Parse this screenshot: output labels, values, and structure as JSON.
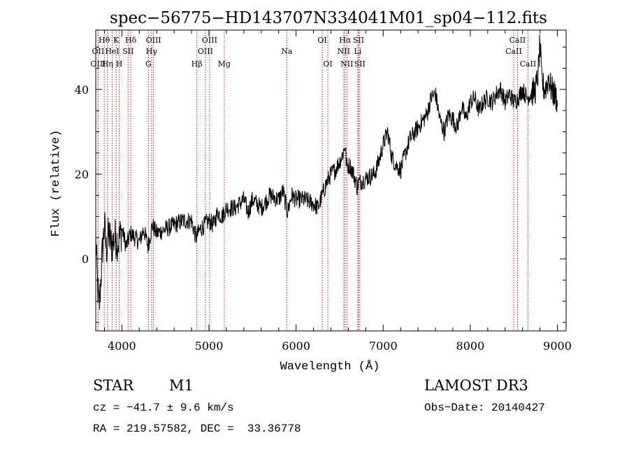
{
  "chart_data": {
    "type": "line",
    "title": "spec−56775−HD143707N334041M01_sp04−112.fits",
    "xlabel": "Wavelength (Å)",
    "ylabel": "Flux (relative)",
    "xlim": [
      3700,
      9100
    ],
    "ylim": [
      -17,
      54
    ],
    "x_ticks": [
      4000,
      5000,
      6000,
      7000,
      8000,
      9000
    ],
    "y_ticks": [
      0,
      20,
      40
    ],
    "series": [
      {
        "name": "flux",
        "x": [
          3700,
          3720,
          3740,
          3760,
          3780,
          3800,
          3820,
          3850,
          3880,
          3920,
          3960,
          4000,
          4050,
          4100,
          4150,
          4200,
          4250,
          4300,
          4350,
          4400,
          4500,
          4600,
          4700,
          4800,
          4850,
          4900,
          5000,
          5050,
          5100,
          5150,
          5200,
          5300,
          5400,
          5450,
          5500,
          5600,
          5700,
          5800,
          5850,
          5900,
          5950,
          6000,
          6100,
          6200,
          6250,
          6300,
          6350,
          6400,
          6450,
          6500,
          6540,
          6563,
          6580,
          6620,
          6660,
          6700,
          6720,
          6800,
          6900,
          6950,
          7000,
          7050,
          7100,
          7150,
          7200,
          7300,
          7400,
          7500,
          7550,
          7600,
          7650,
          7700,
          7750,
          7800,
          7850,
          7900,
          7950,
          8000,
          8050,
          8100,
          8150,
          8200,
          8250,
          8300,
          8350,
          8400,
          8450,
          8500,
          8550,
          8600,
          8650,
          8700,
          8750,
          8780,
          8800,
          8820,
          8850,
          8880,
          8900,
          8930,
          8960,
          8990,
          9000
        ],
        "y": [
          5,
          -6,
          -12,
          -4,
          3,
          8,
          2,
          6,
          3,
          5,
          4,
          7,
          3,
          6,
          5,
          4,
          7,
          3,
          8,
          6,
          7,
          8,
          9,
          9,
          5,
          7,
          9,
          8,
          11,
          10,
          12,
          12,
          14,
          11,
          14,
          12,
          15,
          14,
          16,
          11,
          15,
          14,
          14,
          13,
          12,
          15,
          18,
          20,
          21,
          23,
          25,
          27,
          22,
          22,
          20,
          17,
          18,
          19,
          20,
          23,
          27,
          30,
          24,
          22,
          21,
          28,
          31,
          34,
          38,
          39,
          33,
          30,
          34,
          33,
          31,
          36,
          33,
          37,
          38,
          35,
          37,
          38,
          37,
          39,
          40,
          37,
          39,
          37,
          38,
          40,
          38,
          39,
          40,
          44,
          51,
          42,
          40,
          41,
          43,
          40,
          39,
          38,
          36
        ]
      }
    ],
    "line_markers": [
      {
        "name": "Hθ",
        "x": 3798,
        "row": 0
      },
      {
        "name": "OII",
        "x": 3727,
        "row": 1
      },
      {
        "name": "OIII",
        "x": 3727,
        "row": 2
      },
      {
        "name": "K",
        "x": 3934,
        "row": 0
      },
      {
        "name": "HeI",
        "x": 3889,
        "row": 1
      },
      {
        "name": "Hη",
        "x": 3835,
        "row": 2
      },
      {
        "name": "SII",
        "x": 4072,
        "row": 1
      },
      {
        "name": "H",
        "x": 3969,
        "row": 2
      },
      {
        "name": "Hδ",
        "x": 4102,
        "row": 0
      },
      {
        "name": "OIII",
        "x": 4363,
        "row": 0
      },
      {
        "name": "Hγ",
        "x": 4341,
        "row": 1
      },
      {
        "name": "G",
        "x": 4305,
        "row": 2
      },
      {
        "name": "Hβ",
        "x": 4861,
        "row": 2
      },
      {
        "name": "OIII",
        "x": 5007,
        "row": 0
      },
      {
        "name": "OIII",
        "x": 4959,
        "row": 1
      },
      {
        "name": "Mg",
        "x": 5175,
        "row": 2
      },
      {
        "name": "Na",
        "x": 5893,
        "row": 1
      },
      {
        "name": "OI",
        "x": 6300,
        "row": 0
      },
      {
        "name": "OI",
        "x": 6364,
        "row": 2
      },
      {
        "name": "Hα",
        "x": 6563,
        "row": 0
      },
      {
        "name": "NII",
        "x": 6548,
        "row": 1
      },
      {
        "name": "NII",
        "x": 6583,
        "row": 2
      },
      {
        "name": "SII",
        "x": 6717,
        "row": 0
      },
      {
        "name": "Li",
        "x": 6708,
        "row": 1
      },
      {
        "name": "SII",
        "x": 6731,
        "row": 2
      },
      {
        "name": "CaII",
        "x": 8542,
        "row": 0
      },
      {
        "name": "CaII",
        "x": 8498,
        "row": 1
      },
      {
        "name": "CaII",
        "x": 8662,
        "row": 2
      }
    ]
  },
  "info": {
    "object_class": "STAR",
    "subclass": "M1",
    "survey": "LAMOST DR3",
    "cz": "cz = −41.7 ± 9.6 km/s",
    "obs_date": "Obs−Date: 20140427",
    "coords": "RA = 219.57582, DEC =  33.36778"
  },
  "colors": {
    "line": "#000000",
    "marker": "#b22222",
    "background": "#ffffff"
  }
}
